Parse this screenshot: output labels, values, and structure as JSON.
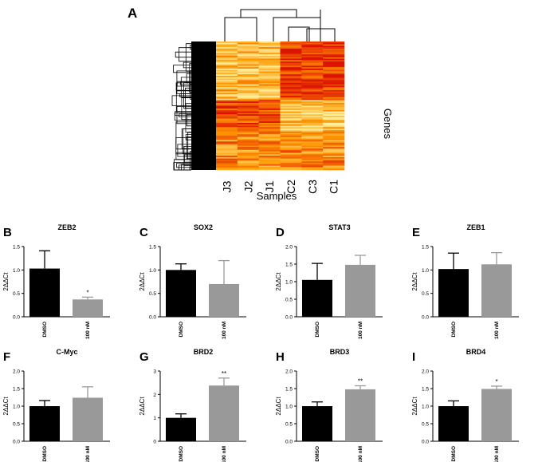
{
  "heatmap": {
    "panel_letter": "A",
    "samples": [
      "J3",
      "J2",
      "J1",
      "C2",
      "C3",
      "C1"
    ],
    "xlabel": "Samples",
    "ylabel": "Genes",
    "colors": {
      "low": "#ffffbb",
      "mid": "#ff9900",
      "high": "#dd1100"
    }
  },
  "colors": {
    "dmso": "#000000",
    "treated": "#999999",
    "axis": "#000000"
  },
  "chart_data": [
    {
      "type": "heatmap",
      "title": "",
      "x": [
        "J3",
        "J2",
        "J1",
        "C2",
        "C3",
        "C1"
      ],
      "xlabel": "Samples",
      "ylabel": "Genes"
    },
    {
      "type": "bar",
      "panel_letter": "B",
      "title": "ZEB2",
      "ylabel": "2ΔΔCt",
      "categories": [
        "DMSO",
        "100 nM"
      ],
      "values": [
        1.03,
        0.37
      ],
      "errors": [
        0.38,
        0.05
      ],
      "significance": [
        "",
        "*"
      ],
      "ylim": [
        0,
        1.5
      ],
      "yticks": [
        "0.0",
        "0.5",
        "1.0",
        "1.5"
      ],
      "ytick_values": [
        0,
        0.5,
        1,
        1.5
      ]
    },
    {
      "type": "bar",
      "panel_letter": "C",
      "title": "SOX2",
      "ylabel": "2ΔΔCt",
      "categories": [
        "DMSO",
        "100 nM"
      ],
      "values": [
        1.0,
        0.7
      ],
      "errors": [
        0.13,
        0.5
      ],
      "significance": [
        "",
        ""
      ],
      "ylim": [
        0,
        1.5
      ],
      "yticks": [
        "0.0",
        "0.5",
        "1.0",
        "1.5"
      ],
      "ytick_values": [
        0,
        0.5,
        1,
        1.5
      ]
    },
    {
      "type": "bar",
      "panel_letter": "D",
      "title": "STAT3",
      "ylabel": "2ΔΔCt",
      "categories": [
        "DMSO",
        "100 nM"
      ],
      "values": [
        1.05,
        1.48
      ],
      "errors": [
        0.47,
        0.27
      ],
      "significance": [
        "",
        ""
      ],
      "ylim": [
        0,
        2.0
      ],
      "yticks": [
        "0.0",
        "0.5",
        "1.0",
        "1.5",
        "2.0"
      ],
      "ytick_values": [
        0,
        0.5,
        1,
        1.5,
        2
      ]
    },
    {
      "type": "bar",
      "panel_letter": "E",
      "title": "ZEB1",
      "ylabel": "2ΔΔCt",
      "categories": [
        "DMSO",
        "100 nM"
      ],
      "values": [
        1.02,
        1.12
      ],
      "errors": [
        0.34,
        0.25
      ],
      "significance": [
        "",
        ""
      ],
      "ylim": [
        0,
        1.5
      ],
      "yticks": [
        "0.0",
        "0.5",
        "1.0",
        "1.5"
      ],
      "ytick_values": [
        0,
        0.5,
        1,
        1.5
      ]
    },
    {
      "type": "bar",
      "panel_letter": "F",
      "title": "C-Myc",
      "ylabel": "2ΔΔCt",
      "categories": [
        "DMSO",
        "100 nM"
      ],
      "values": [
        1.0,
        1.24
      ],
      "errors": [
        0.16,
        0.31
      ],
      "significance": [
        "",
        ""
      ],
      "ylim": [
        0,
        2.0
      ],
      "yticks": [
        "0.0",
        "0.5",
        "1.0",
        "1.5",
        "2.0"
      ],
      "ytick_values": [
        0,
        0.5,
        1,
        1.5,
        2
      ]
    },
    {
      "type": "bar",
      "panel_letter": "G",
      "title": "BRD2",
      "ylabel": "2ΔΔCt",
      "categories": [
        "DMSO",
        "100 nM"
      ],
      "values": [
        1.0,
        2.38
      ],
      "errors": [
        0.17,
        0.32
      ],
      "significance": [
        "",
        "**"
      ],
      "ylim": [
        0,
        3
      ],
      "yticks": [
        "0",
        "1",
        "2",
        "3"
      ],
      "ytick_values": [
        0,
        1,
        2,
        3
      ]
    },
    {
      "type": "bar",
      "panel_letter": "H",
      "title": "BRD3",
      "ylabel": "2ΔΔCt",
      "categories": [
        "DMSO",
        "100 nM"
      ],
      "values": [
        1.0,
        1.48
      ],
      "errors": [
        0.12,
        0.1
      ],
      "significance": [
        "",
        "**"
      ],
      "ylim": [
        0,
        2.0
      ],
      "yticks": [
        "0.0",
        "0.5",
        "1.0",
        "1.5",
        "2.0"
      ],
      "ytick_values": [
        0,
        0.5,
        1,
        1.5,
        2
      ]
    },
    {
      "type": "bar",
      "panel_letter": "I",
      "title": "BRD4",
      "ylabel": "2ΔΔCt",
      "categories": [
        "DMSO",
        "100 nM"
      ],
      "values": [
        1.0,
        1.49
      ],
      "errors": [
        0.15,
        0.08
      ],
      "significance": [
        "",
        "*"
      ],
      "ylim": [
        0,
        2.0
      ],
      "yticks": [
        "0.0",
        "0.5",
        "1.0",
        "1.5",
        "2.0"
      ],
      "ytick_values": [
        0,
        0.5,
        1,
        1.5,
        2
      ]
    }
  ]
}
